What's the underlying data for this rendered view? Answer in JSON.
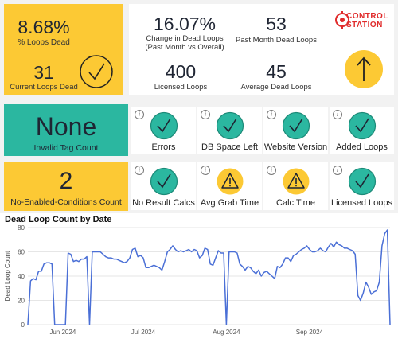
{
  "kpis": {
    "loops_dead_pct": {
      "value": "8.68%",
      "label": "% Loops Dead"
    },
    "current_loops_dead": {
      "value": "31",
      "label": "Current Loops Dead"
    },
    "change_in_dead": {
      "value": "16.07%",
      "label_line1": "Change in Dead Loops",
      "label_line2": "(Past Month vs Overall)"
    },
    "past_month_dead": {
      "value": "53",
      "label": "Past Month Dead Loops"
    },
    "licensed_loops": {
      "value": "400",
      "label": "Licensed Loops"
    },
    "average_dead": {
      "value": "45",
      "label": "Average Dead Loops"
    }
  },
  "logo": {
    "line1": "CONTROL",
    "line2": "STATION"
  },
  "invalid_tags": {
    "value": "None",
    "label": "Invalid Tag Count"
  },
  "no_enabled": {
    "value": "2",
    "label": "No-Enabled-Conditions Count"
  },
  "checks": [
    {
      "label": "Errors",
      "status": "ok"
    },
    {
      "label": "DB Space Left",
      "status": "ok"
    },
    {
      "label": "Website Version",
      "status": "ok"
    },
    {
      "label": "Added Loops",
      "status": "ok"
    },
    {
      "label": "No Result Calcs",
      "status": "ok"
    },
    {
      "label": "Avg Grab Time",
      "status": "warn"
    },
    {
      "label": "Calc Time",
      "status": "warn"
    },
    {
      "label": "Licensed Loops",
      "status": "ok"
    }
  ],
  "info_glyph": "i",
  "colors": {
    "yellow": "#fcc934",
    "teal": "#2bb7a0",
    "line": "#4a6fd6",
    "logo_red": "#e02b2b"
  },
  "chart_data": {
    "type": "line",
    "title": "Dead Loop Count by Date",
    "xlabel": "",
    "ylabel": "Dead Loop Count",
    "ylim": [
      0,
      80
    ],
    "yticks": [
      0,
      20,
      40,
      60,
      80
    ],
    "xticks": [
      "Jun 2024",
      "Jul 2024",
      "Aug 2024",
      "Sep 2024"
    ],
    "xtick_days": [
      13,
      43,
      74,
      105
    ],
    "x_range_days": [
      0,
      122
    ],
    "series": [
      {
        "values": [
          [
            0,
            0
          ],
          [
            1,
            36
          ],
          [
            2,
            38
          ],
          [
            3,
            37
          ],
          [
            4,
            44
          ],
          [
            5,
            44
          ],
          [
            6,
            50
          ],
          [
            7,
            51
          ],
          [
            8,
            51
          ],
          [
            9,
            50
          ],
          [
            10,
            0
          ],
          [
            11,
            0
          ],
          [
            12,
            0
          ],
          [
            13,
            0
          ],
          [
            14,
            0
          ],
          [
            15,
            59
          ],
          [
            16,
            58
          ],
          [
            17,
            52
          ],
          [
            18,
            53
          ],
          [
            19,
            52
          ],
          [
            20,
            54
          ],
          [
            21,
            54
          ],
          [
            22,
            56
          ],
          [
            23,
            0
          ],
          [
            24,
            60
          ],
          [
            25,
            60
          ],
          [
            26,
            60
          ],
          [
            27,
            60
          ],
          [
            28,
            58
          ],
          [
            29,
            56
          ],
          [
            30,
            55
          ],
          [
            31,
            55
          ],
          [
            32,
            54
          ],
          [
            33,
            54
          ],
          [
            34,
            53
          ],
          [
            35,
            52
          ],
          [
            36,
            51
          ],
          [
            37,
            52
          ],
          [
            38,
            55
          ],
          [
            39,
            62
          ],
          [
            40,
            63
          ],
          [
            41,
            56
          ],
          [
            42,
            57
          ],
          [
            43,
            55
          ],
          [
            44,
            47
          ],
          [
            45,
            47
          ],
          [
            46,
            48
          ],
          [
            47,
            49
          ],
          [
            48,
            48
          ],
          [
            49,
            47
          ],
          [
            50,
            45
          ],
          [
            51,
            52
          ],
          [
            52,
            60
          ],
          [
            53,
            62
          ],
          [
            54,
            65
          ],
          [
            55,
            62
          ],
          [
            56,
            60
          ],
          [
            57,
            61
          ],
          [
            58,
            60
          ],
          [
            59,
            61
          ],
          [
            60,
            62
          ],
          [
            61,
            60
          ],
          [
            62,
            62
          ],
          [
            63,
            61
          ],
          [
            64,
            55
          ],
          [
            65,
            57
          ],
          [
            66,
            63
          ],
          [
            67,
            62
          ],
          [
            68,
            50
          ],
          [
            69,
            49
          ],
          [
            70,
            55
          ],
          [
            71,
            61
          ],
          [
            72,
            59
          ],
          [
            73,
            59
          ],
          [
            74,
            0
          ],
          [
            75,
            60
          ],
          [
            76,
            60
          ],
          [
            77,
            60
          ],
          [
            78,
            59
          ],
          [
            79,
            50
          ],
          [
            80,
            48
          ],
          [
            81,
            45
          ],
          [
            82,
            48
          ],
          [
            83,
            47
          ],
          [
            84,
            44
          ],
          [
            85,
            42
          ],
          [
            86,
            45
          ],
          [
            87,
            40
          ],
          [
            88,
            43
          ],
          [
            89,
            44
          ],
          [
            90,
            42
          ],
          [
            91,
            40
          ],
          [
            92,
            38
          ],
          [
            93,
            48
          ],
          [
            94,
            47
          ],
          [
            95,
            50
          ],
          [
            96,
            55
          ],
          [
            97,
            55
          ],
          [
            98,
            52
          ],
          [
            99,
            57
          ],
          [
            100,
            58
          ],
          [
            101,
            60
          ],
          [
            102,
            62
          ],
          [
            103,
            63
          ],
          [
            104,
            65
          ],
          [
            105,
            62
          ],
          [
            106,
            60
          ],
          [
            107,
            60
          ],
          [
            108,
            61
          ],
          [
            109,
            63
          ],
          [
            110,
            61
          ],
          [
            111,
            60
          ],
          [
            112,
            64
          ],
          [
            113,
            67
          ],
          [
            114,
            64
          ],
          [
            115,
            68
          ],
          [
            116,
            66
          ],
          [
            117,
            65
          ],
          [
            118,
            63
          ],
          [
            119,
            63
          ],
          [
            120,
            62
          ],
          [
            121,
            61
          ],
          [
            122,
            58
          ],
          [
            123,
            24
          ],
          [
            124,
            20
          ],
          [
            125,
            26
          ],
          [
            126,
            35
          ],
          [
            127,
            31
          ],
          [
            128,
            25
          ],
          [
            129,
            27
          ],
          [
            130,
            28
          ],
          [
            131,
            35
          ],
          [
            132,
            65
          ],
          [
            133,
            75
          ],
          [
            134,
            78
          ],
          [
            135,
            0
          ]
        ]
      }
    ]
  }
}
